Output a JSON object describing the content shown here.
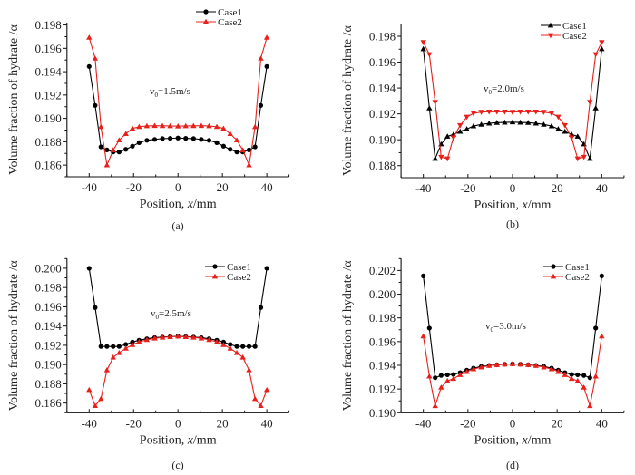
{
  "figure": {
    "panels_label": "Volume fraction of hydrate vs position for four inlet velocities"
  },
  "chart_data": [
    {
      "type": "line",
      "panel": "(a)",
      "caption": "(a)",
      "annotation": {
        "prefix": "v",
        "sub": "0",
        "suffix": "=1.5m/s"
      },
      "xlabel_main": "Position, ",
      "xlabel_ital": "x",
      "xlabel_unit": "/mm",
      "ylabel": "Volume fraction of hydrate /α",
      "xlim": [
        -50,
        50
      ],
      "ylim": [
        0.185,
        0.1982
      ],
      "xticks": [
        -40,
        -20,
        0,
        20,
        40
      ],
      "xticks_minor": [
        -50,
        -30,
        -10,
        10,
        30,
        50
      ],
      "yticks": [
        0.186,
        0.188,
        0.19,
        0.192,
        0.194,
        0.196,
        0.198
      ],
      "ytick_labels": [
        "0.186",
        "0.188",
        "0.190",
        "0.192",
        "0.194",
        "0.196",
        "0.198"
      ],
      "ytick_minor_step": 0.001,
      "legend_position": "top-right",
      "x": [
        -40,
        -37.3,
        -34.7,
        -32,
        -29.2,
        -26.5,
        -23.5,
        -20.5,
        -17.5,
        -14,
        -10.5,
        -7,
        -3.5,
        0,
        3.5,
        7,
        10.5,
        14,
        17.5,
        20.5,
        23.5,
        26.5,
        29.2,
        32,
        34.7,
        37.3,
        40
      ],
      "series": [
        {
          "name": "Case1",
          "color": "#000000",
          "marker": "circle",
          "values": [
            0.19445,
            0.19111,
            0.18756,
            0.1873,
            0.18712,
            0.18712,
            0.18735,
            0.18762,
            0.18792,
            0.18812,
            0.1882,
            0.18827,
            0.18829,
            0.18832,
            0.18829,
            0.18827,
            0.1882,
            0.18812,
            0.18792,
            0.18762,
            0.18735,
            0.18712,
            0.18712,
            0.1873,
            0.18756,
            0.19111,
            0.19445
          ]
        },
        {
          "name": "Case2",
          "color": "#e8201c",
          "marker": "triangle-up",
          "values": [
            0.19693,
            0.19514,
            0.18927,
            0.186,
            0.18728,
            0.18814,
            0.18868,
            0.18914,
            0.18928,
            0.18935,
            0.18937,
            0.18936,
            0.18935,
            0.18933,
            0.18935,
            0.18936,
            0.18937,
            0.18935,
            0.18928,
            0.18914,
            0.18868,
            0.18814,
            0.18728,
            0.186,
            0.18927,
            0.19514,
            0.19693
          ]
        }
      ]
    },
    {
      "type": "line",
      "panel": "(b)",
      "caption": "(b)",
      "annotation": {
        "prefix": "v",
        "sub": "0",
        "suffix": "=2.0m/s"
      },
      "xlabel_main": "Position, ",
      "xlabel_ital": "x",
      "xlabel_unit": "/mm",
      "ylabel": "Volume fraction of hydrate /α",
      "xlim": [
        -50,
        50
      ],
      "ylim": [
        0.18707,
        0.19898
      ],
      "xticks": [
        -40,
        -20,
        0,
        20,
        40
      ],
      "xticks_minor": [
        -50,
        -30,
        -10,
        10,
        30,
        50
      ],
      "yticks": [
        0.188,
        0.19,
        0.192,
        0.194,
        0.196,
        0.198
      ],
      "ytick_labels": [
        "0.188",
        "0.190",
        "0.192",
        "0.194",
        "0.196",
        "0.198"
      ],
      "ytick_minor_step": 0.001,
      "legend_position": "top-right",
      "x": [
        -40,
        -37.3,
        -34.7,
        -32,
        -29.2,
        -26.5,
        -23.5,
        -20.5,
        -17.5,
        -14,
        -10.5,
        -7,
        -3.5,
        0,
        3.5,
        7,
        10.5,
        14,
        17.5,
        20.5,
        23.5,
        26.5,
        29.2,
        32,
        34.7,
        37.3,
        40
      ],
      "series": [
        {
          "name": "Case1",
          "color": "#000000",
          "marker": "triangle-up",
          "values": [
            0.19702,
            0.19244,
            0.18854,
            0.18966,
            0.19026,
            0.19041,
            0.19064,
            0.19083,
            0.19106,
            0.19118,
            0.19127,
            0.19132,
            0.19134,
            0.19136,
            0.19134,
            0.19132,
            0.19127,
            0.19118,
            0.19106,
            0.19083,
            0.19064,
            0.19041,
            0.19026,
            0.18966,
            0.18854,
            0.19244,
            0.19702
          ]
        },
        {
          "name": "Case2",
          "color": "#e8201c",
          "marker": "triangle-down",
          "values": [
            0.19753,
            0.1966,
            0.19291,
            0.18866,
            0.18854,
            0.19017,
            0.19111,
            0.19176,
            0.19204,
            0.19214,
            0.19216,
            0.19216,
            0.19216,
            0.19214,
            0.19216,
            0.19216,
            0.19216,
            0.19214,
            0.19204,
            0.19176,
            0.19111,
            0.19017,
            0.18854,
            0.18866,
            0.19291,
            0.1966,
            0.19753
          ]
        }
      ]
    },
    {
      "type": "line",
      "panel": "(c)",
      "caption": "(c)",
      "annotation": {
        "prefix": "v",
        "sub": "0",
        "suffix": "=2.5m/s"
      },
      "xlabel_main": "Position, ",
      "xlabel_ital": "x",
      "xlabel_unit": "/mm",
      "ylabel": "Volume fraction of hydrate /α",
      "xlim": [
        -50,
        50
      ],
      "ylim": [
        0.185,
        0.201
      ],
      "xticks": [
        -40,
        -20,
        0,
        20,
        40
      ],
      "xticks_minor": [
        -50,
        -30,
        -10,
        10,
        30,
        50
      ],
      "yticks": [
        0.186,
        0.188,
        0.19,
        0.192,
        0.194,
        0.196,
        0.198,
        0.2
      ],
      "ytick_labels": [
        "0.186",
        "0.188",
        "0.190",
        "0.192",
        "0.194",
        "0.196",
        "0.198",
        "0.200"
      ],
      "ytick_minor_step": 0.001,
      "legend_position": "top-right",
      "x": [
        -40,
        -37.3,
        -34.7,
        -32,
        -29.2,
        -26.5,
        -23.5,
        -20.5,
        -17.5,
        -14,
        -10.5,
        -7,
        -3.5,
        0,
        3.5,
        7,
        10.5,
        14,
        17.5,
        20.5,
        23.5,
        26.5,
        29.2,
        32,
        34.7,
        37.3,
        40
      ],
      "series": [
        {
          "name": "Case1",
          "color": "#000000",
          "marker": "circle",
          "values": [
            0.2,
            0.19592,
            0.19188,
            0.19188,
            0.19188,
            0.19188,
            0.19209,
            0.19234,
            0.19253,
            0.19268,
            0.1928,
            0.19286,
            0.1929,
            0.19294,
            0.1929,
            0.19286,
            0.1928,
            0.19268,
            0.19253,
            0.19234,
            0.19209,
            0.19188,
            0.19188,
            0.19188,
            0.19188,
            0.19592,
            0.2
          ]
        },
        {
          "name": "Case2",
          "color": "#e8201c",
          "marker": "triangle-up",
          "values": [
            0.18738,
            0.18572,
            0.18644,
            0.18943,
            0.19075,
            0.19122,
            0.19168,
            0.19206,
            0.19236,
            0.19257,
            0.19273,
            0.19282,
            0.19288,
            0.19294,
            0.19288,
            0.19282,
            0.19273,
            0.19257,
            0.19236,
            0.19206,
            0.19168,
            0.19122,
            0.19075,
            0.18943,
            0.18644,
            0.18572,
            0.18738
          ]
        }
      ]
    },
    {
      "type": "line",
      "panel": "(d)",
      "caption": "(d)",
      "annotation": {
        "prefix": "v",
        "sub": "0",
        "suffix": "=3.0m/s"
      },
      "xlabel_main": "Position, ",
      "xlabel_ital": "x",
      "xlabel_unit": "/mm",
      "ylabel": "Volume fraction of hydrate /α",
      "xlim": [
        -50,
        50
      ],
      "ylim": [
        0.19,
        0.203
      ],
      "xticks": [
        -40,
        -20,
        0,
        20,
        40
      ],
      "xticks_minor": [
        -50,
        -30,
        -10,
        10,
        30,
        50
      ],
      "yticks": [
        0.19,
        0.192,
        0.194,
        0.196,
        0.198,
        0.2,
        0.202
      ],
      "ytick_labels": [
        "0.190",
        "0.192",
        "0.194",
        "0.196",
        "0.198",
        "0.200",
        "0.202"
      ],
      "ytick_minor_step": 0.001,
      "legend_position": "top-right",
      "x": [
        -40,
        -37.3,
        -34.7,
        -32,
        -29.2,
        -26.5,
        -23.5,
        -20.5,
        -17.5,
        -14,
        -10.5,
        -7,
        -3.5,
        0,
        3.5,
        7,
        10.5,
        14,
        17.5,
        20.5,
        23.5,
        26.5,
        29.2,
        32,
        34.7,
        37.3,
        40
      ],
      "series": [
        {
          "name": "Case1",
          "color": "#000000",
          "marker": "circle",
          "values": [
            0.20154,
            0.19714,
            0.19295,
            0.19315,
            0.1932,
            0.19323,
            0.19338,
            0.19359,
            0.19376,
            0.19391,
            0.19399,
            0.19404,
            0.19409,
            0.19412,
            0.19409,
            0.19404,
            0.19399,
            0.19391,
            0.19376,
            0.19359,
            0.19338,
            0.19323,
            0.1932,
            0.19315,
            0.19295,
            0.19714,
            0.20154
          ]
        },
        {
          "name": "Case2",
          "color": "#e8201c",
          "marker": "triangle-up",
          "values": [
            0.19646,
            0.19307,
            0.19058,
            0.19214,
            0.19269,
            0.19287,
            0.1932,
            0.19346,
            0.19369,
            0.19384,
            0.19397,
            0.19404,
            0.19409,
            0.19412,
            0.19409,
            0.19404,
            0.19397,
            0.19384,
            0.19369,
            0.19346,
            0.1932,
            0.19287,
            0.19269,
            0.19214,
            0.19058,
            0.19307,
            0.19646
          ]
        }
      ]
    }
  ]
}
